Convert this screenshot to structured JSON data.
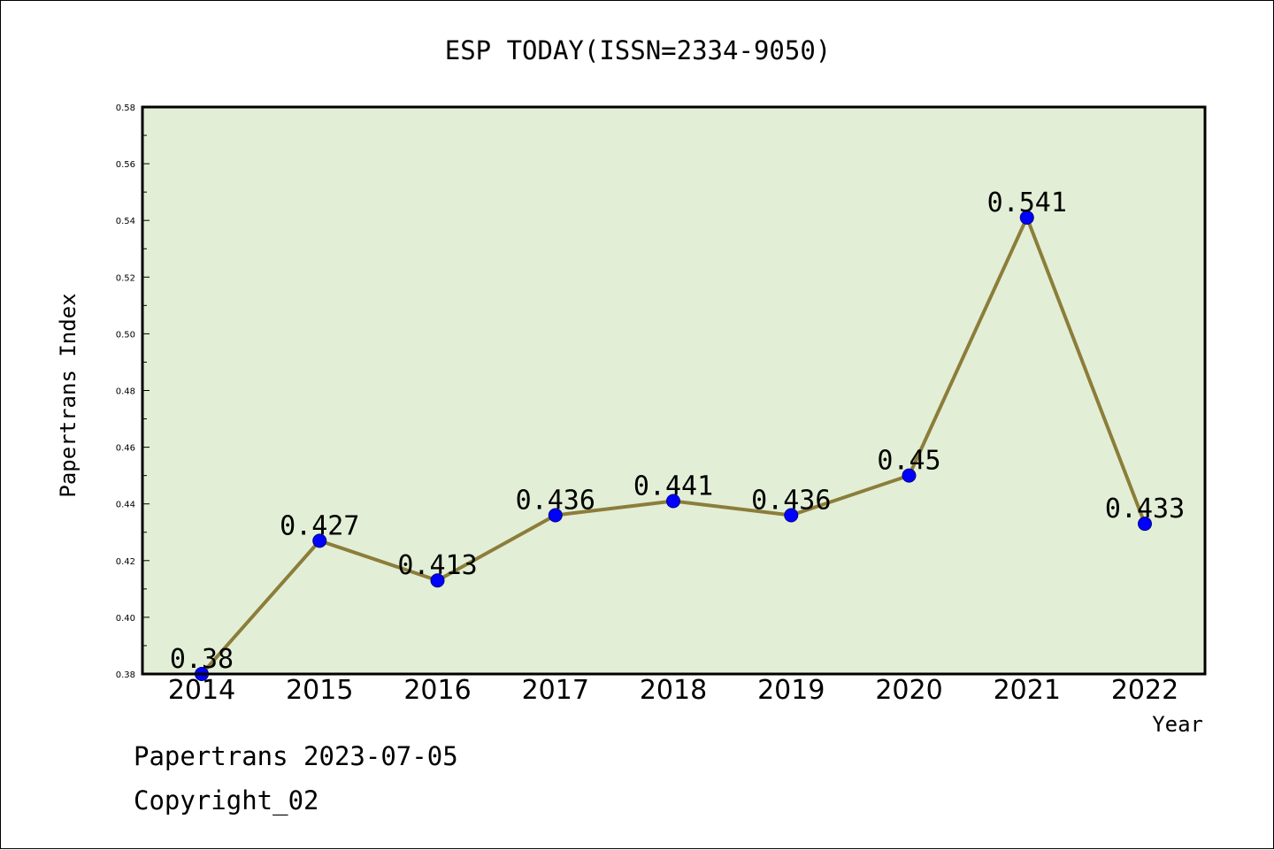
{
  "chart_data": {
    "type": "line",
    "title": "ESP TODAY(ISSN=2334-9050)",
    "xlabel": "Year",
    "ylabel": "Papertrans Index",
    "categories": [
      "2014",
      "2015",
      "2016",
      "2017",
      "2018",
      "2019",
      "2020",
      "2021",
      "2022"
    ],
    "series": [
      {
        "values": [
          0.38,
          0.427,
          0.413,
          0.436,
          0.441,
          0.436,
          0.45,
          0.541,
          0.433
        ],
        "labels": [
          "0.38",
          "0.427",
          "0.413",
          "0.436",
          "0.441",
          "0.436",
          "0.45",
          "0.541",
          "0.433"
        ]
      }
    ],
    "ylim": [
      0.38,
      0.58
    ],
    "yticks": [
      0.38,
      0.4,
      0.42,
      0.44,
      0.46,
      0.48,
      0.5,
      0.52,
      0.54,
      0.56,
      0.58
    ],
    "ytick_labels": [
      "0.38",
      "0.40",
      "0.42",
      "0.44",
      "0.46",
      "0.48",
      "0.50",
      "0.52",
      "0.54",
      "0.56",
      "0.58"
    ],
    "grid": false,
    "legend": "none",
    "colors": {
      "plot_background": "#e2efd6",
      "line": "#8c7d3a",
      "marker": "#0000ff",
      "axis": "#000000"
    }
  },
  "footer": {
    "date_line": "Papertrans 2023-07-05",
    "copyright": "Copyright_02"
  }
}
